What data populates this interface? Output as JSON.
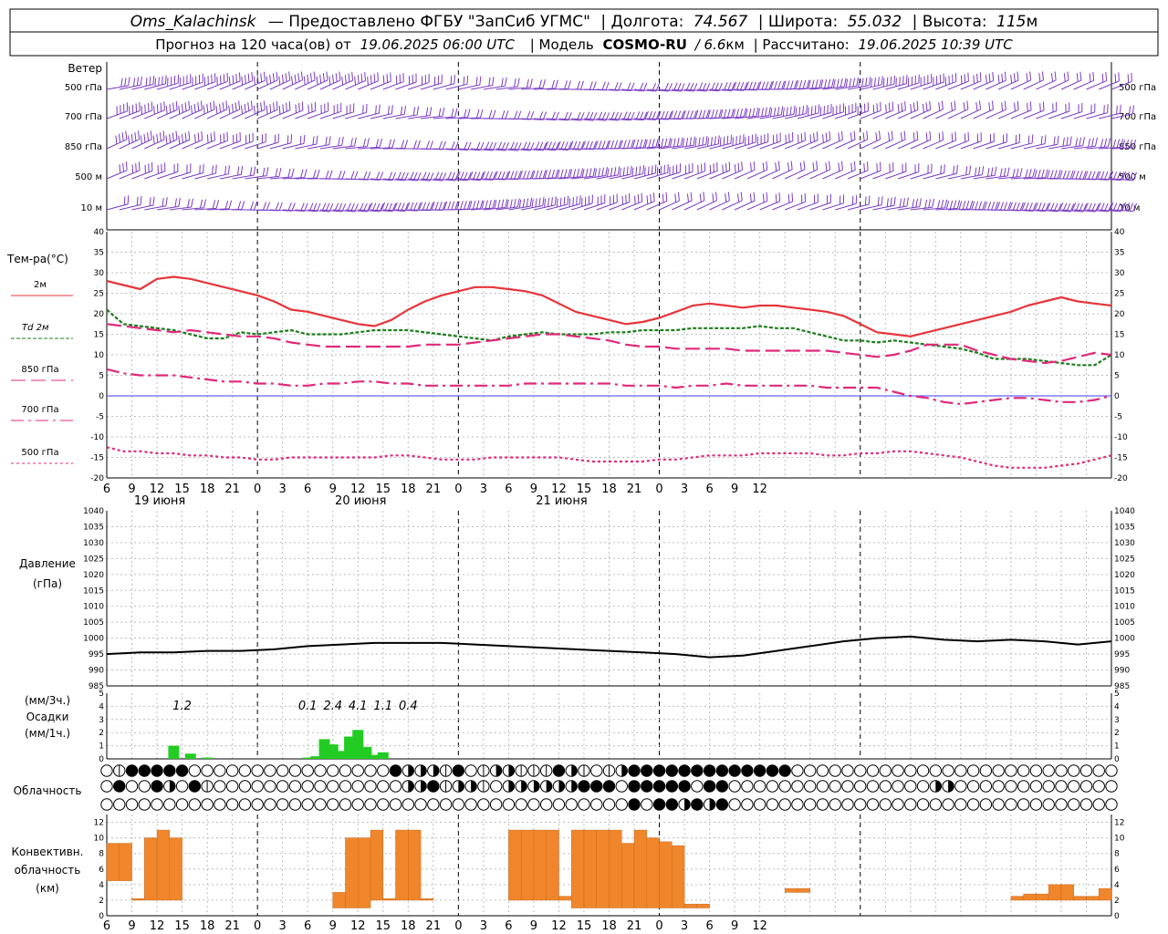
{
  "header": {
    "station": "Oms_Kalachinsk",
    "provider": "— Предоставлено ФГБУ \"ЗапСиб УГМС\"",
    "lon_label": "| Долгота:",
    "lon_value": "74.567",
    "lat_label": "| Широта:",
    "lat_value": "55.032",
    "alt_label": "| Высота:",
    "alt_value": "115",
    "alt_unit": "м",
    "forecast_prefix": "Прогноз на 120 часа(ов) от",
    "forecast_time": "19.06.2025 06:00 UTC",
    "model_label": "| Модель",
    "model_name": "COSMO-RU",
    "model_res": "/ 6.6",
    "model_res_unit": "км",
    "calc_label": "| Рассчитано:",
    "calc_time": "19.06.2025 10:39 UTC"
  },
  "wind_panel": {
    "title": "Ветер",
    "levels": [
      "500 гПа",
      "700 гПа",
      "850 гПа",
      "500 м",
      "10  м"
    ],
    "color": "#7a3cc4"
  },
  "temp_panel": {
    "title": "Тем-ра(°C)",
    "legend": [
      {
        "name": "2м",
        "color": "#e8343a"
      },
      {
        "name": "Td  2м",
        "color": "#1e7d1e"
      },
      {
        "name": "850 гПа",
        "color": "#e0287a"
      },
      {
        "name": "700 гПа",
        "color": "#e0287a"
      },
      {
        "name": "500 гПа",
        "color": "#e0287a"
      }
    ]
  },
  "pressure_panel": {
    "title": "Давление",
    "unit": "(гПа)"
  },
  "precip_panel": {
    "unit_top": "(мм/3ч.)",
    "title": "Осадки",
    "unit_bottom": "(мм/1ч.)",
    "totals": [
      {
        "hour": 9,
        "label": "1.2"
      },
      {
        "hour": 24,
        "label": "0.1"
      },
      {
        "hour": 27,
        "label": "2.4"
      },
      {
        "hour": 30,
        "label": "4.1"
      },
      {
        "hour": 33,
        "label": "1.1"
      },
      {
        "hour": 36,
        "label": "0.4"
      }
    ]
  },
  "cloud_panel": {
    "title": "Облачность"
  },
  "conv_panel": {
    "title_1": "Конвективн.",
    "title_2": "облачность",
    "unit": "(км)",
    "color": "#f0862c"
  },
  "x_axis": {
    "tick_labels": [
      "6",
      "9",
      "12",
      "15",
      "18",
      "21",
      "0",
      "3",
      "6",
      "9",
      "12",
      "15",
      "18",
      "21",
      "0",
      "3",
      "6",
      "9",
      "12",
      "15",
      "18",
      "21",
      "0",
      "3",
      "6",
      "9",
      "12"
    ],
    "day_labels": [
      "19 июня",
      "20 июня",
      "21 июня"
    ]
  },
  "chart_data": [
    {
      "type": "line",
      "panel": "temperature",
      "ylim": [
        -20,
        40
      ],
      "x_unit": "hours from 19.06.2025 06:00 UTC",
      "x": [
        0,
        2,
        4,
        6,
        8,
        10,
        12,
        14,
        16,
        18,
        20,
        22,
        24,
        26,
        28,
        30,
        32,
        34,
        36,
        38,
        40,
        42,
        44,
        46,
        48,
        50,
        52,
        54,
        56,
        58,
        60,
        62,
        64,
        66,
        68,
        70,
        72,
        74,
        76,
        78,
        80,
        82,
        84,
        86,
        88,
        90,
        92,
        94,
        96,
        98,
        100,
        102,
        104,
        106,
        108,
        110,
        112,
        114,
        116,
        118,
        120
      ],
      "series": [
        {
          "name": "2м",
          "values": [
            28,
            27,
            26,
            28.5,
            29,
            28.5,
            27.5,
            26.5,
            25.5,
            24.5,
            23,
            21,
            20.5,
            19.5,
            18.5,
            17.5,
            17,
            18.5,
            21,
            23,
            24.5,
            25.5,
            26.5,
            26.5,
            26,
            25.5,
            24.5,
            22.5,
            20.5,
            19.5,
            18.5,
            17.5,
            18,
            19,
            20.5,
            22,
            22.5,
            22,
            21.5,
            22,
            22,
            21.5,
            21,
            20.5,
            19.5,
            17.5,
            15.5,
            15,
            14.5,
            15.5,
            16.5,
            17.5,
            18.5,
            19.5,
            20.5,
            22,
            23,
            24,
            23,
            22.5,
            22
          ]
        },
        {
          "name": "Td  2м",
          "values": [
            21,
            17.5,
            17,
            16.5,
            16,
            15,
            14,
            14,
            15.5,
            15,
            15.5,
            16,
            15,
            15,
            15,
            15.5,
            16,
            16,
            16,
            15.5,
            15,
            14.5,
            14,
            13.5,
            14.5,
            15,
            15.5,
            15,
            15,
            15,
            15.5,
            15.5,
            16,
            16,
            16,
            16.5,
            16.5,
            16.5,
            16.5,
            17,
            16.5,
            16.5,
            15.5,
            14.5,
            13.5,
            13.5,
            13,
            13.5,
            13,
            12.5,
            12,
            11.5,
            10.5,
            9,
            9,
            9,
            8.5,
            8,
            7.5,
            7.5,
            10
          ]
        },
        {
          "name": "850 гПа",
          "values": [
            17.5,
            17,
            16.5,
            16,
            15.5,
            16,
            15.5,
            15,
            14.5,
            14.5,
            14,
            13,
            12.5,
            12,
            12,
            12,
            12,
            12,
            12,
            12.5,
            12.5,
            12.5,
            13,
            13.5,
            14,
            14.5,
            15,
            15,
            14.5,
            14,
            13.5,
            12.5,
            12,
            12,
            11.5,
            11.5,
            11.5,
            11.5,
            11,
            11,
            11,
            11,
            11,
            11,
            10.5,
            10,
            9.5,
            10,
            11,
            12.5,
            12.5,
            12.5,
            11,
            10,
            9,
            8.5,
            8,
            8.5,
            9.5,
            10.5,
            10
          ]
        },
        {
          "name": "700 гПа",
          "values": [
            6.5,
            5.5,
            5,
            5,
            5,
            4.5,
            4,
            3.5,
            3.5,
            3,
            3,
            2.5,
            2.5,
            3,
            3,
            3.5,
            3.5,
            3,
            3,
            2.5,
            2.5,
            2.5,
            2.5,
            2.5,
            2.5,
            3,
            3,
            3,
            3,
            3,
            3,
            2.5,
            2.5,
            2.5,
            2,
            2.5,
            2.5,
            3,
            2.5,
            2.5,
            2.5,
            2.5,
            2.5,
            2,
            2,
            2,
            2,
            1,
            0,
            -0.5,
            -1.5,
            -2,
            -1.5,
            -1,
            -0.5,
            -0.5,
            -1,
            -1.5,
            -1.5,
            -1,
            0
          ]
        },
        {
          "name": "500 гПа",
          "values": [
            -12.5,
            -13.5,
            -13.5,
            -14,
            -14,
            -14.5,
            -14.5,
            -15,
            -15,
            -15.5,
            -15.5,
            -15,
            -15,
            -15,
            -15,
            -15,
            -15,
            -14.5,
            -14.5,
            -15,
            -15.5,
            -15.5,
            -15.5,
            -15,
            -15,
            -15,
            -15,
            -15,
            -15.5,
            -16,
            -16,
            -16,
            -16,
            -15.5,
            -15.5,
            -15,
            -14.5,
            -14.5,
            -14.5,
            -14,
            -14,
            -14,
            -14,
            -14.5,
            -14.5,
            -14,
            -14,
            -13.5,
            -13.5,
            -14,
            -14.5,
            -15,
            -16,
            -17,
            -17.5,
            -17.5,
            -17.5,
            -17,
            -16.5,
            -15.5,
            -14.5
          ]
        }
      ]
    },
    {
      "type": "line",
      "panel": "pressure",
      "ylim": [
        985,
        1040
      ],
      "x": [
        0,
        4,
        8,
        12,
        16,
        20,
        24,
        28,
        32,
        36,
        40,
        44,
        48,
        52,
        56,
        60,
        64,
        68,
        72,
        76,
        80,
        84,
        88,
        92,
        96,
        100,
        104,
        108,
        112,
        116,
        120
      ],
      "series": [
        {
          "name": "Давление",
          "values": [
            995,
            995.5,
            995.5,
            996,
            996,
            996.5,
            997.5,
            998,
            998.5,
            998.5,
            998.5,
            998,
            997.5,
            997,
            996.5,
            996,
            995.5,
            995,
            994,
            994.5,
            996,
            997.5,
            999,
            1000,
            1000.5,
            999.5,
            999,
            999.5,
            999,
            998,
            999
          ]
        }
      ]
    },
    {
      "type": "bar",
      "panel": "precipitation",
      "ylim": [
        0,
        5
      ],
      "x": [
        8,
        10,
        12,
        24,
        25,
        26,
        27,
        28,
        29,
        30,
        31,
        32,
        33
      ],
      "values": [
        1,
        0.4,
        0.1,
        0.1,
        0.2,
        1.5,
        1.1,
        0.6,
        1.7,
        2.2,
        0.9,
        0.3,
        0.5
      ]
    },
    {
      "type": "bar",
      "panel": "convective cloud",
      "ylim": [
        0,
        12
      ],
      "bars": [
        {
          "x0": 0,
          "x1": 1.5,
          "base": 4.5,
          "top": 9.3
        },
        {
          "x0": 1.5,
          "x1": 3,
          "base": 4.5,
          "top": 9.3
        },
        {
          "x0": 3,
          "x1": 4.5,
          "base": 2,
          "top": 2.2
        },
        {
          "x0": 4.5,
          "x1": 6,
          "base": 2,
          "top": 10
        },
        {
          "x0": 6,
          "x1": 7.5,
          "base": 2,
          "top": 11
        },
        {
          "x0": 7.5,
          "x1": 9,
          "base": 2,
          "top": 10
        },
        {
          "x0": 27,
          "x1": 28.5,
          "base": 1,
          "top": 3
        },
        {
          "x0": 28.5,
          "x1": 30,
          "base": 1,
          "top": 10
        },
        {
          "x0": 30,
          "x1": 31.5,
          "base": 1,
          "top": 10
        },
        {
          "x0": 31.5,
          "x1": 33,
          "base": 2,
          "top": 11
        },
        {
          "x0": 33,
          "x1": 34.5,
          "base": 2,
          "top": 2.2
        },
        {
          "x0": 34.5,
          "x1": 36,
          "base": 2,
          "top": 11
        },
        {
          "x0": 36,
          "x1": 37.5,
          "base": 2,
          "top": 11
        },
        {
          "x0": 37.5,
          "x1": 39,
          "base": 2,
          "top": 2.2
        },
        {
          "x0": 48,
          "x1": 49.5,
          "base": 2,
          "top": 11
        },
        {
          "x0": 49.5,
          "x1": 51,
          "base": 2,
          "top": 11
        },
        {
          "x0": 51,
          "x1": 52.5,
          "base": 2,
          "top": 11
        },
        {
          "x0": 52.5,
          "x1": 54,
          "base": 2,
          "top": 11
        },
        {
          "x0": 54,
          "x1": 55.5,
          "base": 2,
          "top": 2.5
        },
        {
          "x0": 55.5,
          "x1": 57,
          "base": 1,
          "top": 11
        },
        {
          "x0": 57,
          "x1": 58.5,
          "base": 1,
          "top": 11
        },
        {
          "x0": 58.5,
          "x1": 60,
          "base": 1,
          "top": 11
        },
        {
          "x0": 60,
          "x1": 61.5,
          "base": 1,
          "top": 11
        },
        {
          "x0": 61.5,
          "x1": 63,
          "base": 1,
          "top": 9.3
        },
        {
          "x0": 63,
          "x1": 64.5,
          "base": 1,
          "top": 11
        },
        {
          "x0": 64.5,
          "x1": 66,
          "base": 1,
          "top": 10
        },
        {
          "x0": 66,
          "x1": 67.5,
          "base": 1,
          "top": 9.5
        },
        {
          "x0": 67.5,
          "x1": 69,
          "base": 1,
          "top": 9
        },
        {
          "x0": 69,
          "x1": 70.5,
          "base": 1,
          "top": 1.5
        },
        {
          "x0": 70.5,
          "x1": 72,
          "base": 1,
          "top": 1.5
        },
        {
          "x0": 81,
          "x1": 82.5,
          "base": 3,
          "top": 3.5
        },
        {
          "x0": 82.5,
          "x1": 84,
          "base": 3,
          "top": 3.5
        },
        {
          "x0": 108,
          "x1": 109.5,
          "base": 2,
          "top": 2.5
        },
        {
          "x0": 109.5,
          "x1": 111,
          "base": 2,
          "top": 2.8
        },
        {
          "x0": 111,
          "x1": 112.5,
          "base": 2,
          "top": 2.8
        },
        {
          "x0": 112.5,
          "x1": 114,
          "base": 2,
          "top": 4
        },
        {
          "x0": 114,
          "x1": 115.5,
          "base": 2,
          "top": 4
        },
        {
          "x0": 115.5,
          "x1": 117,
          "base": 2,
          "top": 2.5
        },
        {
          "x0": 117,
          "x1": 118.5,
          "base": 2,
          "top": 2.5
        },
        {
          "x0": 118.5,
          "x1": 120,
          "base": 2,
          "top": 3.5
        }
      ]
    }
  ]
}
